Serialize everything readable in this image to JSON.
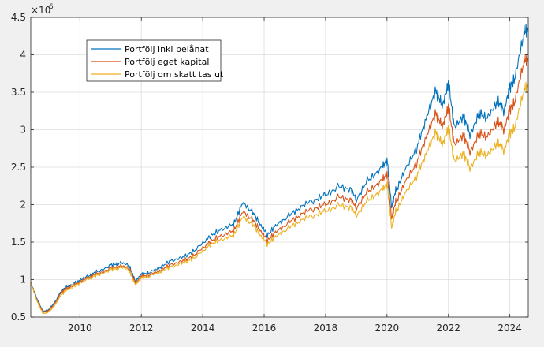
{
  "chart_data": {
    "type": "line",
    "title": "",
    "xlabel": "",
    "ylabel": "",
    "exponent_label": "×10",
    "exponent_power": "6",
    "xlim": [
      2008.4,
      2024.6
    ],
    "ylim": [
      0.5,
      4.5
    ],
    "xticks": [
      2010,
      2012,
      2014,
      2016,
      2018,
      2020,
      2022,
      2024
    ],
    "xtick_labels": [
      "2010",
      "2012",
      "2014",
      "2016",
      "2018",
      "2020",
      "2022",
      "2024"
    ],
    "yticks": [
      0.5,
      1,
      1.5,
      2,
      2.5,
      3,
      3.5,
      4,
      4.5
    ],
    "ytick_labels": [
      "0.5",
      "1",
      "1.5",
      "2",
      "2.5",
      "3",
      "3.5",
      "4",
      "4.5"
    ],
    "grid": true,
    "legend_position": "top-left",
    "x": [
      2008.4,
      2008.6,
      2008.8,
      2009.0,
      2009.2,
      2009.4,
      2009.6,
      2009.8,
      2010.0,
      2010.3,
      2010.6,
      2011.0,
      2011.3,
      2011.6,
      2011.8,
      2012.0,
      2012.3,
      2012.6,
      2013.0,
      2013.4,
      2013.8,
      2014.2,
      2014.6,
      2015.0,
      2015.3,
      2015.6,
      2015.9,
      2016.1,
      2016.4,
      2016.8,
      2017.2,
      2017.6,
      2018.0,
      2018.4,
      2018.8,
      2019.0,
      2019.4,
      2019.8,
      2020.0,
      2020.15,
      2020.3,
      2020.6,
      2021.0,
      2021.3,
      2021.6,
      2021.8,
      2022.0,
      2022.2,
      2022.5,
      2022.7,
      2023.0,
      2023.3,
      2023.6,
      2023.8,
      2024.0,
      2024.2,
      2024.45,
      2024.6
    ],
    "series": [
      {
        "name": "Portfölj inkl belånat",
        "color": "#0072BD",
        "values": [
          0.95,
          0.75,
          0.58,
          0.6,
          0.7,
          0.85,
          0.92,
          0.95,
          0.98,
          1.05,
          1.12,
          1.2,
          1.22,
          1.18,
          0.98,
          1.08,
          1.1,
          1.15,
          1.25,
          1.32,
          1.42,
          1.55,
          1.65,
          1.75,
          2.05,
          1.9,
          1.7,
          1.6,
          1.75,
          1.85,
          1.95,
          2.05,
          2.15,
          2.25,
          2.2,
          2.05,
          2.35,
          2.5,
          2.6,
          1.95,
          2.2,
          2.5,
          2.8,
          3.15,
          3.5,
          3.35,
          3.65,
          3.0,
          3.15,
          2.95,
          3.25,
          3.15,
          3.35,
          3.25,
          3.6,
          3.75,
          4.25,
          4.3
        ]
      },
      {
        "name": "Portfölj eget kapital",
        "color": "#D95319",
        "values": [
          0.95,
          0.73,
          0.57,
          0.59,
          0.68,
          0.83,
          0.9,
          0.93,
          0.96,
          1.03,
          1.09,
          1.16,
          1.18,
          1.14,
          0.96,
          1.05,
          1.07,
          1.11,
          1.2,
          1.27,
          1.36,
          1.48,
          1.57,
          1.66,
          1.93,
          1.8,
          1.62,
          1.53,
          1.66,
          1.76,
          1.85,
          1.94,
          2.02,
          2.11,
          2.06,
          1.94,
          2.2,
          2.33,
          2.42,
          1.8,
          2.05,
          2.33,
          2.6,
          2.9,
          3.2,
          3.07,
          3.33,
          2.77,
          2.9,
          2.72,
          2.98,
          2.9,
          3.08,
          3.0,
          3.3,
          3.43,
          3.88,
          3.9
        ]
      },
      {
        "name": "Portfölj om skatt tas ut",
        "color": "#EDB120",
        "values": [
          0.95,
          0.72,
          0.55,
          0.57,
          0.66,
          0.8,
          0.88,
          0.91,
          0.94,
          1.01,
          1.07,
          1.14,
          1.16,
          1.12,
          0.93,
          1.03,
          1.05,
          1.09,
          1.17,
          1.24,
          1.32,
          1.44,
          1.52,
          1.6,
          1.86,
          1.74,
          1.56,
          1.48,
          1.6,
          1.69,
          1.77,
          1.85,
          1.93,
          2.0,
          1.96,
          1.84,
          2.08,
          2.2,
          2.28,
          1.68,
          1.92,
          2.18,
          2.42,
          2.68,
          2.95,
          2.83,
          3.05,
          2.55,
          2.66,
          2.5,
          2.73,
          2.65,
          2.8,
          2.72,
          2.98,
          3.08,
          3.5,
          3.55
        ]
      }
    ]
  }
}
